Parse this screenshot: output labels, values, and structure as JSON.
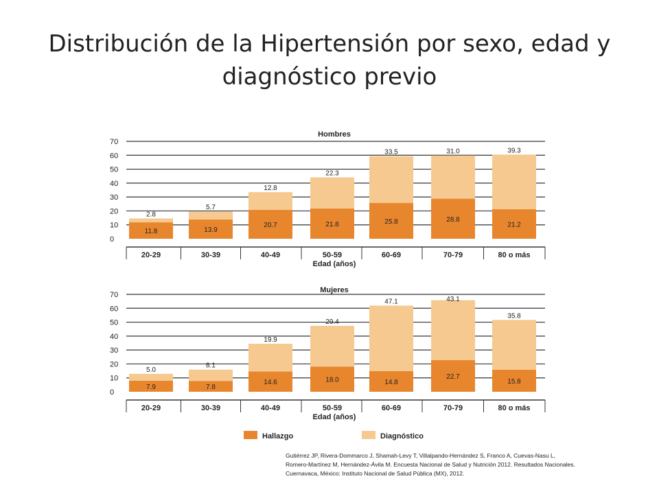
{
  "slide": {
    "title": "Distribución de la Hipertensión por sexo, edad y diagnóstico previo"
  },
  "colors": {
    "hallazgo": "#E8862E",
    "diagnostico": "#F5C990",
    "grid": "#333333",
    "text": "#222222"
  },
  "chart_data": [
    {
      "type": "bar",
      "stacked": true,
      "title": "Hombres",
      "xlabel": "Edad (años)",
      "ylabel": "",
      "ylim": [
        0,
        70
      ],
      "yticks": [
        0,
        10,
        20,
        30,
        40,
        50,
        60,
        70
      ],
      "categories": [
        "20-29",
        "30-39",
        "40-49",
        "50-59",
        "60-69",
        "70-79",
        "80 o más"
      ],
      "series": [
        {
          "name": "Hallazgo",
          "values": [
            11.8,
            13.9,
            20.7,
            21.8,
            25.8,
            28.8,
            21.2
          ]
        },
        {
          "name": "Diagnóstico",
          "values": [
            2.8,
            5.7,
            12.8,
            22.3,
            33.5,
            31.0,
            39.3
          ]
        }
      ]
    },
    {
      "type": "bar",
      "stacked": true,
      "title": "Mujeres",
      "xlabel": "Edad (años)",
      "ylabel": "",
      "ylim": [
        0,
        70
      ],
      "yticks": [
        0,
        10,
        20,
        30,
        40,
        50,
        60,
        70
      ],
      "categories": [
        "20-29",
        "30-39",
        "40-49",
        "50-59",
        "60-69",
        "70-79",
        "80 o más"
      ],
      "series": [
        {
          "name": "Hallazgo",
          "values": [
            7.9,
            7.8,
            14.6,
            18.0,
            14.8,
            22.7,
            15.8
          ]
        },
        {
          "name": "Diagnóstico",
          "values": [
            5.0,
            8.1,
            19.9,
            29.4,
            47.1,
            43.1,
            35.8
          ]
        }
      ]
    }
  ],
  "legend": [
    {
      "label": "Hallazgo",
      "color_key": "hallazgo"
    },
    {
      "label": "Diagnóstico",
      "color_key": "diagnostico"
    }
  ],
  "citation": {
    "line1": "Gutiérrez JP, Rivera-Dommarco J, Shamah-Levy T, Villalpando-Hernández S, Franco A, Cuevas-Nasu L,",
    "line2": "Romero-Martínez M, Hernández-Ávila M. Encuesta Nacional de Salud y Nutrición 2012. Resultados Nacionales.",
    "line3": "Cuernavaca, México: Instituto Nacional de Salud Pública (MX), 2012."
  }
}
